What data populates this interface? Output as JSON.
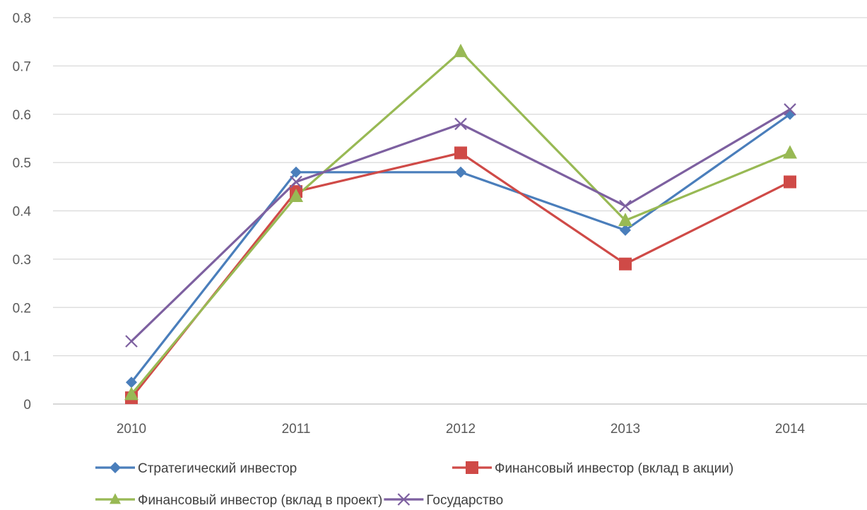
{
  "chart_data": {
    "type": "line",
    "title": "",
    "xlabel": "",
    "ylabel": "",
    "x": [
      "2010",
      "2011",
      "2012",
      "2013",
      "2014"
    ],
    "ylim": [
      0,
      0.8
    ],
    "yticks": [
      "0",
      "0.1",
      "0.2",
      "0.3",
      "0.4",
      "0.5",
      "0.6",
      "0.7",
      "0.8"
    ],
    "ytick_values": [
      0,
      0.1,
      0.2,
      0.3,
      0.4,
      0.5,
      0.6,
      0.7,
      0.8
    ],
    "grid": true,
    "legend_position": "bottom",
    "series": [
      {
        "name": "Стратегический инвестор",
        "color": "#4a7ebb",
        "marker": "diamond",
        "values": [
          0.045,
          0.48,
          0.48,
          0.36,
          0.6
        ]
      },
      {
        "name": "Финансовый инвестор (вклад в акции)",
        "color": "#cf4a47",
        "marker": "square",
        "values": [
          0.013,
          0.44,
          0.52,
          0.29,
          0.46
        ]
      },
      {
        "name": "Финансовый инвестор (вклад в проект)",
        "color": "#98b954",
        "marker": "triangle",
        "values": [
          0.02,
          0.43,
          0.73,
          0.38,
          0.52
        ]
      },
      {
        "name": "Государство",
        "color": "#7d60a0",
        "marker": "x",
        "values": [
          0.13,
          0.46,
          0.58,
          0.41,
          0.61
        ]
      }
    ]
  }
}
